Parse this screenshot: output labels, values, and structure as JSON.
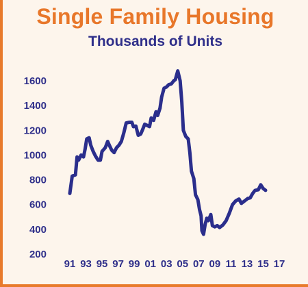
{
  "chart_data": {
    "type": "line",
    "title": "Single Family Housing",
    "subtitle": "Thousands of Units",
    "xlabel": "",
    "ylabel": "",
    "ylim": [
      200,
      1700
    ],
    "yticks": [
      1600,
      1400,
      1200,
      1000,
      800,
      600,
      400,
      200
    ],
    "xlim": [
      1990.6,
      2017.0
    ],
    "xticks": [
      "91",
      "93",
      "95",
      "97",
      "99",
      "01",
      "03",
      "05",
      "07",
      "09",
      "11",
      "13",
      "15",
      "17"
    ],
    "xtick_years": [
      1991,
      1993,
      1995,
      1997,
      1999,
      2001,
      2003,
      2005,
      2007,
      2009,
      2011,
      2013,
      2015,
      2017
    ],
    "grid": false,
    "legend": "none",
    "line_color": "#2b2e8c",
    "series": [
      {
        "name": "",
        "points": [
          [
            1991.0,
            690
          ],
          [
            1991.3,
            830
          ],
          [
            1991.7,
            840
          ],
          [
            1991.9,
            985
          ],
          [
            1992.1,
            960
          ],
          [
            1992.4,
            1000
          ],
          [
            1992.7,
            985
          ],
          [
            1992.9,
            1050
          ],
          [
            1993.1,
            1130
          ],
          [
            1993.4,
            1140
          ],
          [
            1993.6,
            1080
          ],
          [
            1993.9,
            1030
          ],
          [
            1994.2,
            990
          ],
          [
            1994.5,
            960
          ],
          [
            1994.8,
            960
          ],
          [
            1995.0,
            1030
          ],
          [
            1995.4,
            1060
          ],
          [
            1995.7,
            1110
          ],
          [
            1995.9,
            1080
          ],
          [
            1996.2,
            1040
          ],
          [
            1996.5,
            1020
          ],
          [
            1996.8,
            1060
          ],
          [
            1997.1,
            1080
          ],
          [
            1997.4,
            1110
          ],
          [
            1997.7,
            1180
          ],
          [
            1998.0,
            1260
          ],
          [
            1998.4,
            1265
          ],
          [
            1998.7,
            1265
          ],
          [
            1998.9,
            1230
          ],
          [
            1999.2,
            1235
          ],
          [
            1999.5,
            1160
          ],
          [
            1999.8,
            1170
          ],
          [
            2000.0,
            1200
          ],
          [
            2000.3,
            1250
          ],
          [
            2000.6,
            1240
          ],
          [
            2000.9,
            1230
          ],
          [
            2001.1,
            1300
          ],
          [
            2001.4,
            1280
          ],
          [
            2001.7,
            1350
          ],
          [
            2001.9,
            1320
          ],
          [
            2002.2,
            1380
          ],
          [
            2002.4,
            1470
          ],
          [
            2002.7,
            1540
          ],
          [
            2003.0,
            1550
          ],
          [
            2003.3,
            1570
          ],
          [
            2003.6,
            1575
          ],
          [
            2003.9,
            1600
          ],
          [
            2004.1,
            1610
          ],
          [
            2004.4,
            1680
          ],
          [
            2004.7,
            1600
          ],
          [
            2004.9,
            1430
          ],
          [
            2005.1,
            1200
          ],
          [
            2005.4,
            1150
          ],
          [
            2005.7,
            1130
          ],
          [
            2005.9,
            1020
          ],
          [
            2006.1,
            870
          ],
          [
            2006.4,
            810
          ],
          [
            2006.6,
            680
          ],
          [
            2006.9,
            640
          ],
          [
            2007.1,
            560
          ],
          [
            2007.3,
            510
          ],
          [
            2007.4,
            390
          ],
          [
            2007.6,
            360
          ],
          [
            2007.8,
            440
          ],
          [
            2008.0,
            490
          ],
          [
            2008.2,
            470
          ],
          [
            2008.5,
            520
          ],
          [
            2008.7,
            430
          ],
          [
            2009.0,
            420
          ],
          [
            2009.3,
            430
          ],
          [
            2009.6,
            415
          ],
          [
            2010.0,
            435
          ],
          [
            2010.4,
            470
          ],
          [
            2010.8,
            530
          ],
          [
            2011.2,
            600
          ],
          [
            2011.6,
            630
          ],
          [
            2012.0,
            645
          ],
          [
            2012.3,
            610
          ],
          [
            2012.7,
            630
          ],
          [
            2013.1,
            650
          ],
          [
            2013.4,
            655
          ],
          [
            2013.7,
            690
          ],
          [
            2014.0,
            715
          ],
          [
            2014.4,
            720
          ],
          [
            2014.7,
            760
          ],
          [
            2015.0,
            730
          ],
          [
            2015.3,
            715
          ]
        ]
      }
    ]
  }
}
